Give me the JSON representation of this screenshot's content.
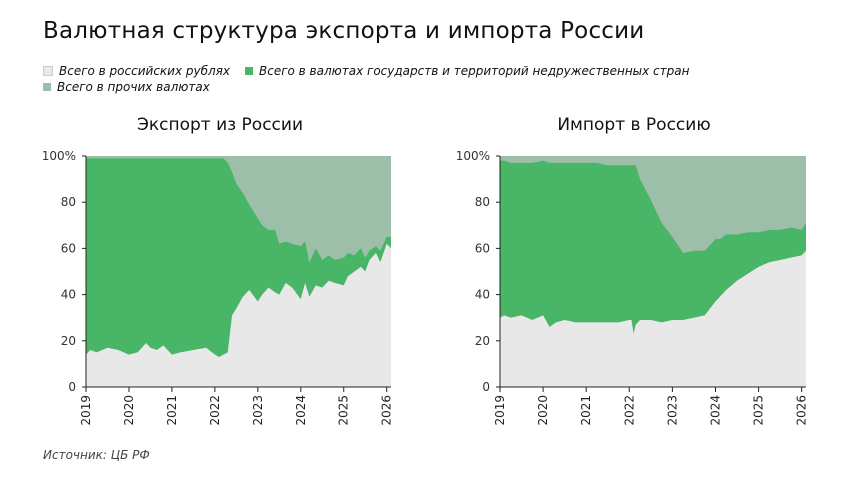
{
  "header": {
    "title": "Валютная структура экспорта и импорта России"
  },
  "legend": [
    {
      "label": "Всего в российских рублях",
      "color": "#e8e8e8"
    },
    {
      "label": "Всего в валютах государств и территорий недружественных стран",
      "color": "#49b566"
    },
    {
      "label": "Всего в прочих валютах",
      "color": "#9dbfaa"
    }
  ],
  "source": "Источник: ЦБ РФ",
  "chart_data": [
    {
      "type": "area",
      "stacked": true,
      "title": "Экспорт из России",
      "xticks": [
        "2019",
        "2020",
        "2021",
        "2022",
        "2023",
        "2024",
        "2025",
        "2026"
      ],
      "yticks": [
        "0",
        "20",
        "40",
        "60",
        "80",
        "100%"
      ],
      "xlim": [
        2019,
        2026.1
      ],
      "ylim": [
        0,
        100
      ],
      "x": [
        2019,
        2019.1,
        2019.25,
        2019.5,
        2019.75,
        2020,
        2020.2,
        2020.4,
        2020.5,
        2020.65,
        2020.8,
        2021,
        2021.2,
        2021.5,
        2021.8,
        2022,
        2022.1,
        2022.2,
        2022.3,
        2022.4,
        2022.5,
        2022.65,
        2022.8,
        2023,
        2023.1,
        2023.25,
        2023.4,
        2023.5,
        2023.65,
        2023.8,
        2024,
        2024.1,
        2024.2,
        2024.35,
        2024.5,
        2024.65,
        2024.8,
        2025,
        2025.1,
        2025.25,
        2025.4,
        2025.5,
        2025.6,
        2025.75,
        2025.85,
        2026,
        2026.1
      ],
      "series": [
        {
          "name": "Всего в российских рублях",
          "color": "#e8e8e8",
          "values": [
            14,
            16,
            15,
            17,
            16,
            14,
            15,
            19,
            17,
            16,
            18,
            14,
            15,
            16,
            17,
            14,
            13,
            14,
            15,
            31,
            34,
            39,
            42,
            37,
            40,
            43,
            41,
            40,
            45,
            43,
            38,
            45,
            39,
            44,
            43,
            46,
            45,
            44,
            48,
            50,
            52,
            50,
            55,
            58,
            54,
            62,
            60
          ]
        },
        {
          "name": "Всего в валютах государств и территорий недружественных стран",
          "color": "#49b566",
          "values": [
            85,
            83,
            84,
            82,
            83,
            85,
            84,
            80,
            82,
            83,
            81,
            85,
            84,
            83,
            82,
            85,
            86,
            85,
            82,
            62,
            54,
            45,
            37,
            36,
            30,
            25,
            27,
            22,
            18,
            19,
            23,
            18,
            15,
            16,
            12,
            11,
            10,
            12,
            10,
            7,
            8,
            6,
            4,
            3,
            5,
            3,
            5
          ]
        }
      ]
    },
    {
      "type": "area",
      "stacked": true,
      "title": "Импорт в Россию",
      "xticks": [
        "2019",
        "2020",
        "2021",
        "2022",
        "2023",
        "2024",
        "2025",
        "2026"
      ],
      "yticks": [
        "0",
        "20",
        "40",
        "60",
        "80",
        "100%"
      ],
      "xlim": [
        2019,
        2026.1
      ],
      "ylim": [
        0,
        100
      ],
      "x": [
        2019,
        2019.1,
        2019.25,
        2019.5,
        2019.75,
        2020,
        2020.15,
        2020.3,
        2020.5,
        2020.75,
        2021,
        2021.25,
        2021.5,
        2021.75,
        2022,
        2022.05,
        2022.1,
        2022.15,
        2022.25,
        2022.5,
        2022.75,
        2023,
        2023.25,
        2023.5,
        2023.75,
        2024,
        2024.1,
        2024.25,
        2024.5,
        2024.75,
        2025,
        2025.25,
        2025.5,
        2025.75,
        2026,
        2026.1
      ],
      "series": [
        {
          "name": "Всего в российских рублях",
          "color": "#e8e8e8",
          "values": [
            30,
            31,
            30,
            31,
            29,
            31,
            26,
            28,
            29,
            28,
            28,
            28,
            28,
            28,
            29,
            29,
            23,
            27,
            29,
            29,
            28,
            29,
            29,
            30,
            31,
            37,
            39,
            42,
            46,
            49,
            52,
            54,
            55,
            56,
            57,
            59
          ]
        },
        {
          "name": "Всего в валютах государств и территорий недружественных стран",
          "color": "#49b566",
          "values": [
            68,
            67,
            67,
            66,
            68,
            67,
            71,
            69,
            68,
            69,
            69,
            69,
            68,
            68,
            67,
            67,
            73,
            69,
            61,
            52,
            43,
            36,
            29,
            29,
            28,
            27,
            25,
            24,
            20,
            18,
            15,
            14,
            13,
            13,
            11,
            12
          ]
        }
      ]
    }
  ]
}
